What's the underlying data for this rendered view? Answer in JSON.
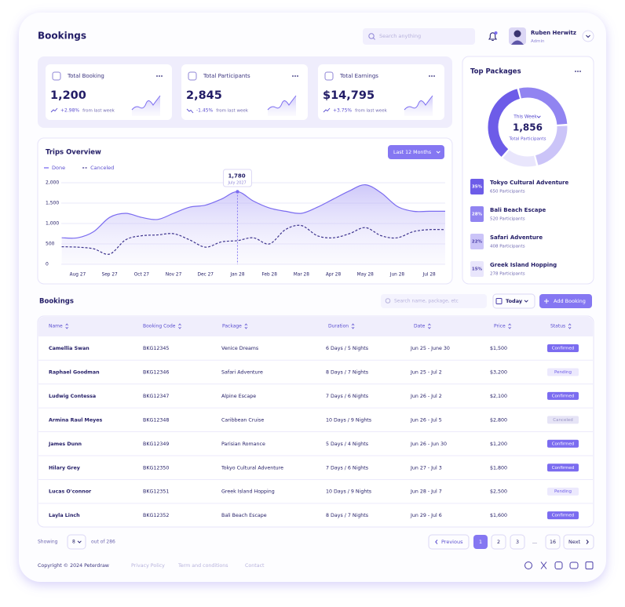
{
  "header": {
    "title": "Bookings",
    "search_placeholder": "Search anything",
    "user_name": "Ruben Herwitz",
    "user_role": "Admin"
  },
  "stats": [
    {
      "label": "Total Booking",
      "value": "1,200",
      "change": "+2.98%",
      "note": "from last week"
    },
    {
      "label": "Total Participants",
      "value": "2,845",
      "change": "-1.45%",
      "note": "from last week"
    },
    {
      "label": "Total Earnings",
      "value": "$14,795",
      "change": "+3.75%",
      "note": "from last week"
    }
  ],
  "chart_data": [
    {
      "type": "line",
      "title": "Trips Overview",
      "filter": "Last 12 Months",
      "x": [
        null,
        "Aug 27",
        null,
        "Sep 27",
        null,
        "Oct 27",
        null,
        "Nov 27",
        null,
        "Dec 27",
        null,
        "Jan 28",
        null,
        "Feb 28",
        null,
        "Mar 28",
        null,
        "Apr 28",
        null,
        "May 28",
        null,
        "Jun 28",
        null,
        "Jul 28",
        null
      ],
      "series": [
        {
          "name": "Done",
          "color": "#7b6cf0",
          "style": "solid",
          "values": [
            650,
            650,
            800,
            1150,
            1250,
            1150,
            1100,
            1250,
            1400,
            1450,
            1600,
            1780,
            1550,
            1380,
            1300,
            1250,
            1400,
            1600,
            1800,
            1950,
            1750,
            1420,
            1300,
            1300,
            1300
          ]
        },
        {
          "name": "Canceled",
          "color": "#3f358f",
          "style": "dashed",
          "values": [
            430,
            420,
            380,
            250,
            600,
            700,
            720,
            750,
            600,
            420,
            550,
            580,
            650,
            500,
            850,
            950,
            700,
            650,
            750,
            900,
            700,
            650,
            800,
            850,
            850
          ]
        }
      ],
      "ylim": [
        0,
        2000
      ],
      "yticks": [
        {
          "value": 2000,
          "label": "2,000"
        },
        {
          "value": 1500,
          "label": "1,500"
        },
        {
          "value": 1000,
          "label": "1,000"
        },
        500,
        0
      ],
      "grid": true,
      "annotations": [
        {
          "text": "1,780"
        },
        {
          "text": "July 2027"
        }
      ]
    },
    {
      "type": "donut",
      "title": "Top Packages",
      "center_label": "This Week",
      "total": "1,856",
      "total_label": "Total Participants",
      "categories": [
        "Tokyo Cultural Adventure",
        "Bali Beach Escape",
        "Safari Adventure",
        "Greek Island Hopping"
      ],
      "values": [
        35,
        28,
        22,
        15
      ],
      "value_labels": [
        "35%",
        "28%",
        "22%",
        "15%"
      ],
      "notes": [
        "650 Participants",
        "520 Participants",
        "408 Participants",
        "278 Participants"
      ],
      "colors": [
        "#6d5ce8",
        "#9184f1",
        "#cbc4f8",
        "#e9e6fc"
      ]
    }
  ],
  "bookings": {
    "title": "Bookings",
    "search_placeholder": "Search name, package, etc",
    "filter": "Today",
    "add_button": "Add Booking",
    "columns": [
      "Name",
      "Booking Code",
      "Package",
      "Duration",
      "Date",
      "Price",
      "Status"
    ],
    "rows": [
      [
        "Camellia Swan",
        "BKG12345",
        "Venice Dreams",
        "6 Days / 5 Nights",
        "Jun 25 - June 30",
        "$1,500",
        "Confirmed"
      ],
      [
        "Raphael Goodman",
        "BKG12346",
        "Safari Adventure",
        "8 Days / 7 Nights",
        "Jun 25 - Jul 2",
        "$3,200",
        "Pending"
      ],
      [
        "Ludwig Contessa",
        "BKG12347",
        "Alpine Escape",
        "7 Days / 6 Nights",
        "Jun 26 - Jul 2",
        "$2,100",
        "Confirmed"
      ],
      [
        "Armina Raul Meyes",
        "BKG12348",
        "Caribbean Cruise",
        "10 Days / 9 Nights",
        "Jun 26 - Jul 5",
        "$2,800",
        "Canceled"
      ],
      [
        "James Dunn",
        "BKG12349",
        "Parisian Romance",
        "5 Days / 4 Nights",
        "Jun 26 - Jun 30",
        "$1,200",
        "Confirmed"
      ],
      [
        "Hilary Grey",
        "BKG12350",
        "Tokyo Cultural Adventure",
        "7 Days / 6 Nights",
        "Jun 27 - Jul 3",
        "$1,800",
        "Confirmed"
      ],
      [
        "Lucas O'connor",
        "BKG12351",
        "Greek Island Hopping",
        "10 Days / 9 Nights",
        "Jun 28 - Jul 7",
        "$2,500",
        "Pending"
      ],
      [
        "Layla Linch",
        "BKG12352",
        "Bali Beach Escape",
        "8 Days / 7 Nights",
        "Jun 29 - Jul 6",
        "$1,600",
        "Confirmed"
      ]
    ]
  },
  "pagination": {
    "showing": "Showing",
    "per_page": "8",
    "total": "out of 286",
    "previous": "Previous",
    "pages": [
      "1",
      "2",
      "3",
      "...",
      "16"
    ],
    "next": "Next"
  },
  "footer": {
    "copyright": "Copyright © 2024 Peterdraw",
    "links": [
      "Privacy Policy",
      "Term and conditions",
      "Contact"
    ]
  }
}
